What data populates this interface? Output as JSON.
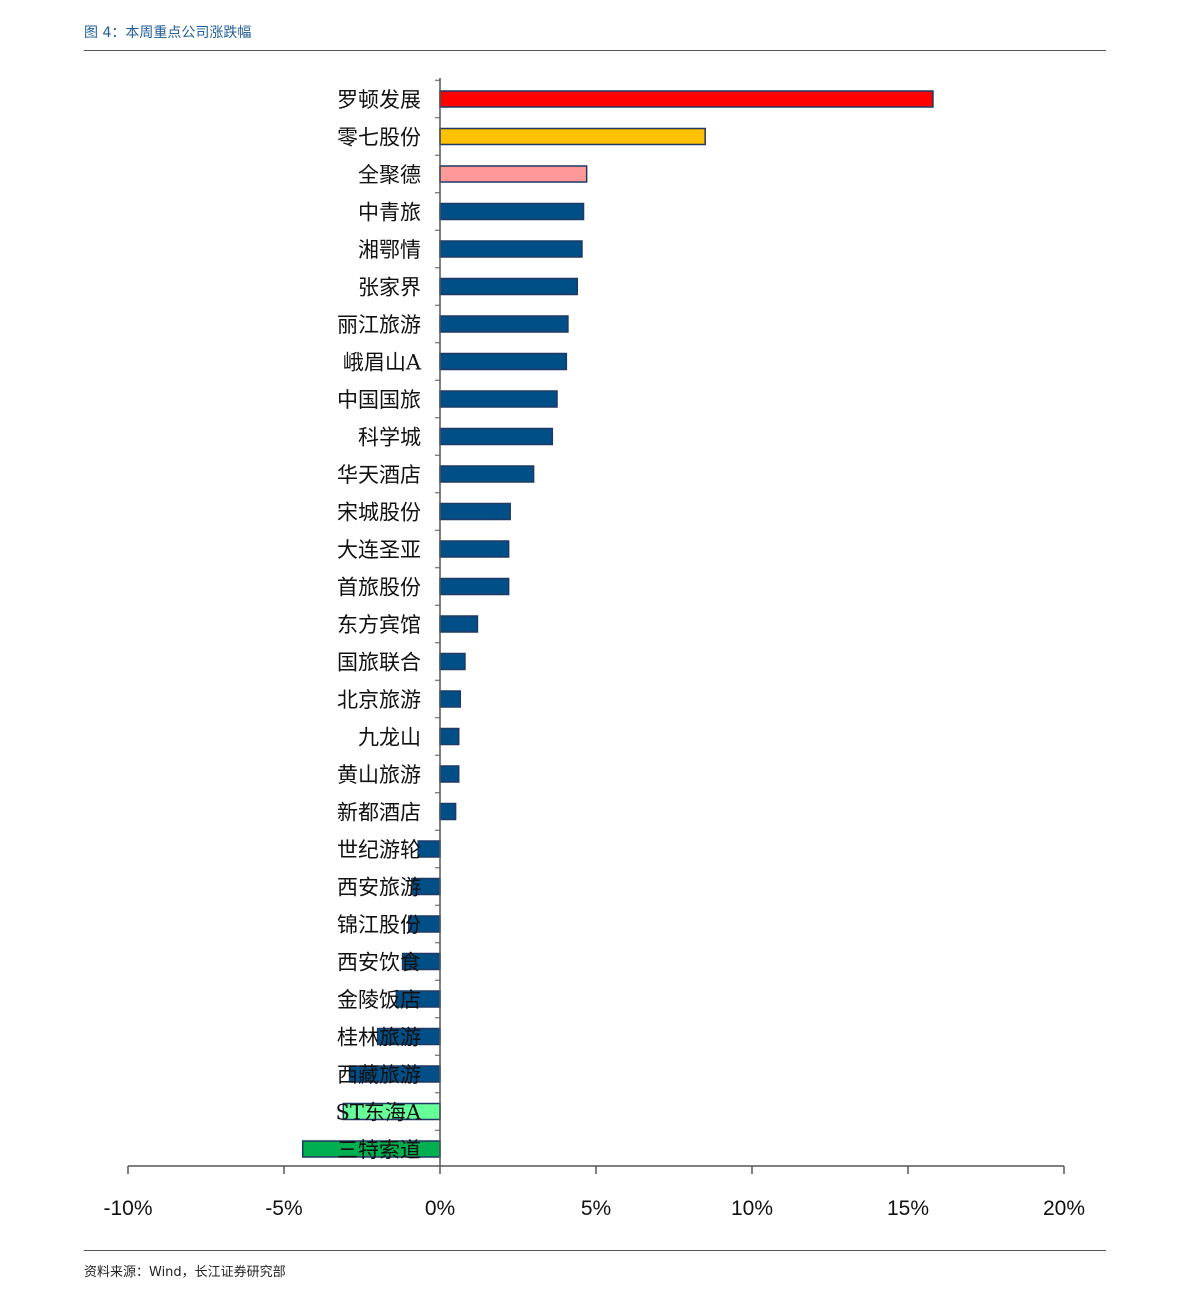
{
  "header": {
    "figure_title": "图 4：本周重点公司涨跌幅"
  },
  "footer": {
    "source": "资料来源：Wind，长江证券研究部"
  },
  "chart_data": {
    "type": "bar",
    "orientation": "horizontal",
    "title": "",
    "xlabel": "",
    "ylabel": "",
    "xlim": [
      -10,
      20
    ],
    "x_ticks": [
      -10,
      -5,
      0,
      5,
      10,
      15,
      20
    ],
    "x_tick_labels": [
      "-10%",
      "-5%",
      "0%",
      "5%",
      "10%",
      "15%",
      "20%"
    ],
    "grid": false,
    "legend": false,
    "categories": [
      "罗顿发展",
      "零七股份",
      "全聚德",
      "中青旅",
      "湘鄂情",
      "张家界",
      "丽江旅游",
      "峨眉山A",
      "中国国旅",
      "科学城",
      "华天酒店",
      "宋城股份",
      "大连圣亚",
      "首旅股份",
      "东方宾馆",
      "国旅联合",
      "北京旅游",
      "九龙山",
      "黄山旅游",
      "新都酒店",
      "世纪游轮",
      "西安旅游",
      "锦江股份",
      "西安饮食",
      "金陵饭店",
      "桂林旅游",
      "西藏旅游",
      "ST东海A",
      "三特索道"
    ],
    "values": [
      15.8,
      8.5,
      4.7,
      4.6,
      4.55,
      4.4,
      4.1,
      4.05,
      3.75,
      3.6,
      3.0,
      2.25,
      2.2,
      2.2,
      1.2,
      0.8,
      0.65,
      0.6,
      0.6,
      0.5,
      -0.7,
      -0.9,
      -1.0,
      -1.2,
      -1.4,
      -2.0,
      -2.9,
      -3.1,
      -4.4
    ],
    "bar_colors": [
      "#ff0000",
      "#ffc000",
      "#ff9999",
      "#004f87",
      "#004f87",
      "#004f87",
      "#004f87",
      "#004f87",
      "#004f87",
      "#004f87",
      "#004f87",
      "#004f87",
      "#004f87",
      "#004f87",
      "#004f87",
      "#004f87",
      "#004f87",
      "#004f87",
      "#004f87",
      "#004f87",
      "#004f87",
      "#004f87",
      "#004f87",
      "#004f87",
      "#004f87",
      "#004f87",
      "#004f87",
      "#66ff99",
      "#00b050"
    ],
    "bar_edge_color": "#1f3864"
  },
  "colors": {
    "title_color": "#1f5c99",
    "axis_color": "#555555"
  }
}
